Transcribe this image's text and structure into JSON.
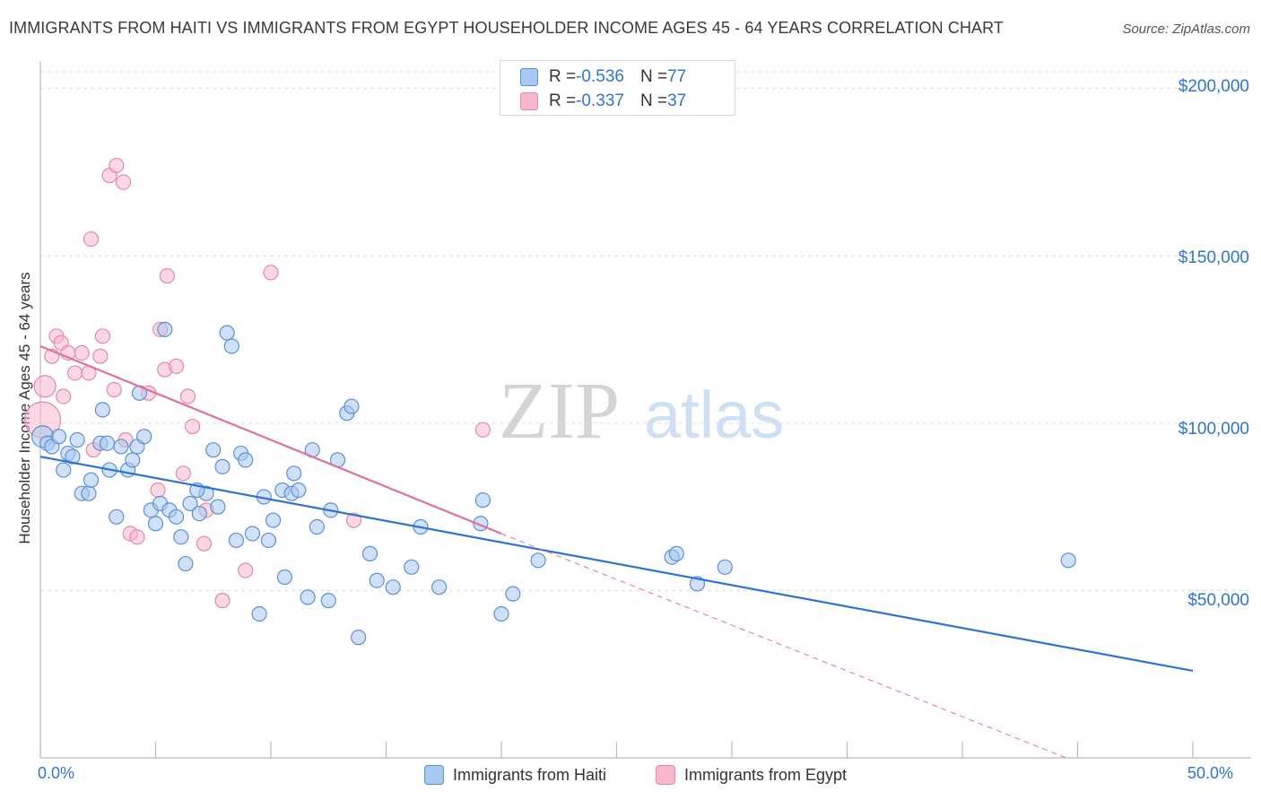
{
  "title": "IMMIGRANTS FROM HAITI VS IMMIGRANTS FROM EGYPT HOUSEHOLDER INCOME AGES 45 - 64 YEARS CORRELATION CHART",
  "source": "Source: ZipAtlas.com",
  "watermark": {
    "zip": "ZIP",
    "atlas": "atlas"
  },
  "legend": {
    "rows": [
      {
        "r_label": "R = ",
        "r_value": "-0.536",
        "n_label": "N = ",
        "n_value": "77"
      },
      {
        "r_label": "R = ",
        "r_value": "-0.337",
        "n_label": "N = ",
        "n_value": "37"
      }
    ]
  },
  "colors": {
    "haiti_fill": "#a9c8f0",
    "haiti_stroke": "#5b8fd6",
    "haiti_line": "#2f74d0",
    "egypt_fill": "#f7b8cb",
    "egypt_stroke": "#e48aa6",
    "egypt_line": "#e0709a",
    "tick_text": "#2f74d0",
    "grid": "#dcdcdc"
  },
  "chart_data": {
    "type": "scatter",
    "title": "IMMIGRANTS FROM HAITI VS IMMIGRANTS FROM EGYPT HOUSEHOLDER INCOME AGES 45 - 64 YEARS CORRELATION CHART",
    "xlabel": "",
    "ylabel": "Householder Income Ages 45 - 64 years",
    "xlim": [
      0,
      50
    ],
    "ylim": [
      0,
      205000
    ],
    "x_tick_labels": [
      "0.0%",
      "50.0%"
    ],
    "y_ticks": [
      50000,
      100000,
      150000,
      200000
    ],
    "y_tick_labels": [
      "$50,000",
      "$100,000",
      "$150,000",
      "$200,000"
    ],
    "grid": true,
    "legend_position": "top-center",
    "series": [
      {
        "name": "Immigrants from Haiti",
        "r": -0.536,
        "n": 77,
        "trend": {
          "x": [
            0,
            50
          ],
          "y": [
            90000,
            26000
          ]
        },
        "points": [
          [
            0.1,
            96000
          ],
          [
            0.3,
            94000
          ],
          [
            0.5,
            93000
          ],
          [
            0.8,
            96000
          ],
          [
            1.0,
            86000
          ],
          [
            1.2,
            91000
          ],
          [
            1.4,
            90000
          ],
          [
            1.6,
            95000
          ],
          [
            1.8,
            79000
          ],
          [
            2.1,
            79000
          ],
          [
            2.6,
            94000
          ],
          [
            2.7,
            104000
          ],
          [
            2.9,
            94000
          ],
          [
            3.0,
            86000
          ],
          [
            3.3,
            72000
          ],
          [
            3.5,
            93000
          ],
          [
            3.8,
            86000
          ],
          [
            4.0,
            89000
          ],
          [
            4.2,
            93000
          ],
          [
            4.3,
            109000
          ],
          [
            4.5,
            96000
          ],
          [
            4.8,
            74000
          ],
          [
            5.0,
            70000
          ],
          [
            5.2,
            76000
          ],
          [
            5.4,
            128000
          ],
          [
            5.6,
            74000
          ],
          [
            5.9,
            72000
          ],
          [
            6.1,
            66000
          ],
          [
            6.3,
            58000
          ],
          [
            6.5,
            76000
          ],
          [
            6.9,
            73000
          ],
          [
            7.2,
            79000
          ],
          [
            7.5,
            92000
          ],
          [
            7.7,
            75000
          ],
          [
            7.9,
            87000
          ],
          [
            8.1,
            127000
          ],
          [
            8.3,
            123000
          ],
          [
            8.5,
            65000
          ],
          [
            8.7,
            91000
          ],
          [
            8.9,
            89000
          ],
          [
            9.2,
            67000
          ],
          [
            9.5,
            43000
          ],
          [
            9.7,
            78000
          ],
          [
            9.9,
            65000
          ],
          [
            10.1,
            71000
          ],
          [
            10.5,
            80000
          ],
          [
            10.6,
            54000
          ],
          [
            10.9,
            79000
          ],
          [
            11.0,
            85000
          ],
          [
            11.2,
            80000
          ],
          [
            11.6,
            48000
          ],
          [
            11.8,
            92000
          ],
          [
            12.0,
            69000
          ],
          [
            12.5,
            47000
          ],
          [
            12.6,
            74000
          ],
          [
            12.9,
            89000
          ],
          [
            13.3,
            103000
          ],
          [
            13.5,
            105000
          ],
          [
            13.8,
            36000
          ],
          [
            14.3,
            61000
          ],
          [
            14.6,
            53000
          ],
          [
            15.3,
            51000
          ],
          [
            16.1,
            57000
          ],
          [
            16.5,
            69000
          ],
          [
            17.3,
            51000
          ],
          [
            19.1,
            70000
          ],
          [
            19.2,
            77000
          ],
          [
            20.0,
            43000
          ],
          [
            20.5,
            49000
          ],
          [
            21.6,
            59000
          ],
          [
            27.4,
            60000
          ],
          [
            27.6,
            61000
          ],
          [
            28.5,
            52000
          ],
          [
            29.7,
            57000
          ],
          [
            44.6,
            59000
          ],
          [
            2.2,
            83000
          ],
          [
            6.8,
            80000
          ]
        ]
      },
      {
        "name": "Immigrants from Egypt",
        "r": -0.337,
        "n": 37,
        "trend": {
          "x": [
            0,
            20
          ],
          "y": [
            123000,
            67000
          ]
        },
        "trend_dashed": {
          "x": [
            20,
            44.5
          ],
          "y": [
            67000,
            0
          ]
        },
        "points": [
          [
            0.1,
            101000
          ],
          [
            0.2,
            111000
          ],
          [
            0.5,
            120000
          ],
          [
            0.7,
            126000
          ],
          [
            0.9,
            124000
          ],
          [
            1.0,
            108000
          ],
          [
            1.2,
            121000
          ],
          [
            1.5,
            115000
          ],
          [
            1.8,
            121000
          ],
          [
            2.1,
            115000
          ],
          [
            2.3,
            92000
          ],
          [
            2.2,
            155000
          ],
          [
            2.6,
            120000
          ],
          [
            2.7,
            126000
          ],
          [
            3.0,
            174000
          ],
          [
            3.2,
            110000
          ],
          [
            3.3,
            177000
          ],
          [
            3.6,
            172000
          ],
          [
            3.7,
            95000
          ],
          [
            3.9,
            67000
          ],
          [
            4.2,
            66000
          ],
          [
            4.7,
            109000
          ],
          [
            5.1,
            80000
          ],
          [
            5.2,
            128000
          ],
          [
            5.4,
            116000
          ],
          [
            5.5,
            144000
          ],
          [
            5.9,
            117000
          ],
          [
            6.2,
            85000
          ],
          [
            6.4,
            108000
          ],
          [
            6.6,
            99000
          ],
          [
            7.1,
            64000
          ],
          [
            7.2,
            74000
          ],
          [
            7.9,
            47000
          ],
          [
            8.9,
            56000
          ],
          [
            10.0,
            145000
          ],
          [
            13.6,
            71000
          ],
          [
            19.2,
            98000
          ]
        ]
      }
    ]
  },
  "bottom_legend": [
    {
      "label": "Immigrants from Haiti"
    },
    {
      "label": "Immigrants from Egypt"
    }
  ]
}
